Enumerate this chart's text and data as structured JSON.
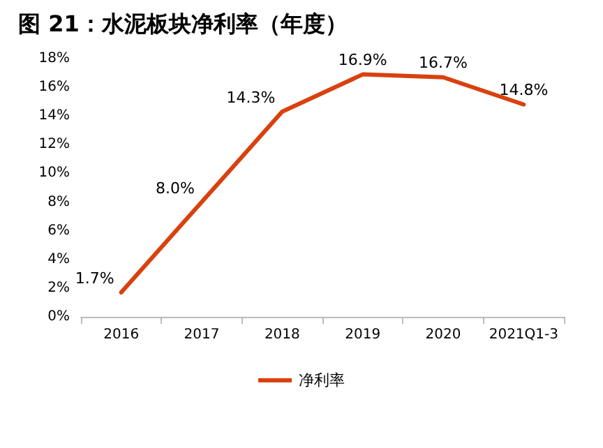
{
  "chart_data": {
    "type": "line",
    "title": "图 21：水泥板块净利率（年度）",
    "categories": [
      "2016",
      "2017",
      "2018",
      "2019",
      "2020",
      "2021Q1-3"
    ],
    "series": [
      {
        "name": "净利率",
        "color": "#d9410e",
        "values": [
          1.7,
          8.0,
          14.3,
          16.9,
          16.7,
          14.8
        ],
        "value_labels": [
          "1.7%",
          "8.0%",
          "14.3%",
          "16.9%",
          "16.7%",
          "14.8%"
        ]
      }
    ],
    "ylim": [
      0,
      18
    ],
    "yticks": [
      {
        "value": 0,
        "label": "0%"
      },
      {
        "value": 2,
        "label": "2%"
      },
      {
        "value": 4,
        "label": "4%"
      },
      {
        "value": 6,
        "label": "6%"
      },
      {
        "value": 8,
        "label": "8%"
      },
      {
        "value": 10,
        "label": "10%"
      },
      {
        "value": 12,
        "label": "12%"
      },
      {
        "value": 14,
        "label": "14%"
      },
      {
        "value": 16,
        "label": "16%"
      },
      {
        "value": 18,
        "label": "18%"
      }
    ],
    "grid": false,
    "legend": "bottom",
    "marker": "none",
    "line_style": "solid"
  }
}
